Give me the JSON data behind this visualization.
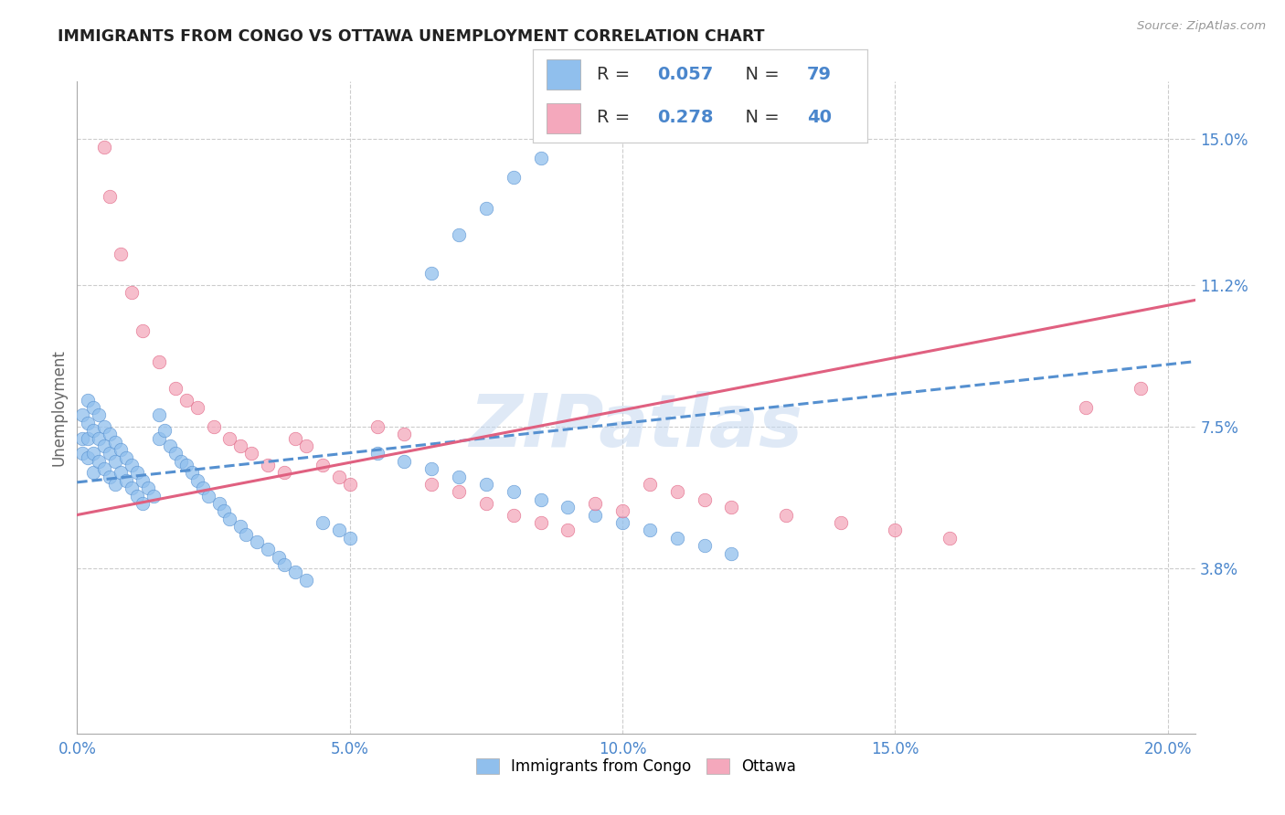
{
  "title": "IMMIGRANTS FROM CONGO VS OTTAWA UNEMPLOYMENT CORRELATION CHART",
  "source": "Source: ZipAtlas.com",
  "xlabel_ticks": [
    "0.0%",
    "5.0%",
    "10.0%",
    "15.0%",
    "20.0%"
  ],
  "xlabel_tick_vals": [
    0.0,
    0.05,
    0.1,
    0.15,
    0.2
  ],
  "ylabel_ticks": [
    "3.8%",
    "7.5%",
    "11.2%",
    "15.0%"
  ],
  "ylabel_tick_vals": [
    0.038,
    0.075,
    0.112,
    0.15
  ],
  "xlim": [
    0.0,
    0.205
  ],
  "ylim": [
    -0.005,
    0.165
  ],
  "watermark": "ZIPatlas",
  "ylabel_label": "Unemployment",
  "legend_label1": "Immigrants from Congo",
  "legend_label2": "Ottawa",
  "R1": 0.057,
  "N1": 79,
  "R2": 0.278,
  "N2": 40,
  "color1": "#90bfed",
  "color2": "#f4a8bc",
  "trendline1_color": "#5590d0",
  "trendline2_color": "#e06080",
  "blue_text_color": "#4a86cc",
  "dark_text_color": "#333333",
  "grid_color": "#cccccc",
  "scatter1_x": [
    0.001,
    0.001,
    0.001,
    0.002,
    0.002,
    0.002,
    0.002,
    0.003,
    0.003,
    0.003,
    0.003,
    0.004,
    0.004,
    0.004,
    0.005,
    0.005,
    0.005,
    0.006,
    0.006,
    0.006,
    0.007,
    0.007,
    0.007,
    0.008,
    0.008,
    0.009,
    0.009,
    0.01,
    0.01,
    0.011,
    0.011,
    0.012,
    0.012,
    0.013,
    0.014,
    0.015,
    0.015,
    0.016,
    0.017,
    0.018,
    0.019,
    0.02,
    0.021,
    0.022,
    0.023,
    0.024,
    0.026,
    0.027,
    0.028,
    0.03,
    0.031,
    0.033,
    0.035,
    0.037,
    0.038,
    0.04,
    0.042,
    0.045,
    0.048,
    0.05,
    0.055,
    0.06,
    0.065,
    0.07,
    0.075,
    0.08,
    0.085,
    0.09,
    0.095,
    0.1,
    0.105,
    0.11,
    0.115,
    0.12,
    0.065,
    0.07,
    0.075,
    0.08,
    0.085
  ],
  "scatter1_y": [
    0.078,
    0.072,
    0.068,
    0.082,
    0.076,
    0.072,
    0.067,
    0.08,
    0.074,
    0.068,
    0.063,
    0.078,
    0.072,
    0.066,
    0.075,
    0.07,
    0.064,
    0.073,
    0.068,
    0.062,
    0.071,
    0.066,
    0.06,
    0.069,
    0.063,
    0.067,
    0.061,
    0.065,
    0.059,
    0.063,
    0.057,
    0.061,
    0.055,
    0.059,
    0.057,
    0.078,
    0.072,
    0.074,
    0.07,
    0.068,
    0.066,
    0.065,
    0.063,
    0.061,
    0.059,
    0.057,
    0.055,
    0.053,
    0.051,
    0.049,
    0.047,
    0.045,
    0.043,
    0.041,
    0.039,
    0.037,
    0.035,
    0.05,
    0.048,
    0.046,
    0.068,
    0.066,
    0.064,
    0.062,
    0.06,
    0.058,
    0.056,
    0.054,
    0.052,
    0.05,
    0.048,
    0.046,
    0.044,
    0.042,
    0.115,
    0.125,
    0.132,
    0.14,
    0.145
  ],
  "scatter2_x": [
    0.005,
    0.006,
    0.008,
    0.01,
    0.012,
    0.015,
    0.018,
    0.02,
    0.022,
    0.025,
    0.028,
    0.03,
    0.032,
    0.035,
    0.038,
    0.04,
    0.042,
    0.045,
    0.048,
    0.05,
    0.055,
    0.06,
    0.065,
    0.07,
    0.075,
    0.08,
    0.085,
    0.09,
    0.095,
    0.1,
    0.105,
    0.11,
    0.115,
    0.12,
    0.13,
    0.14,
    0.15,
    0.16,
    0.185,
    0.195
  ],
  "scatter2_y": [
    0.148,
    0.135,
    0.12,
    0.11,
    0.1,
    0.092,
    0.085,
    0.082,
    0.08,
    0.075,
    0.072,
    0.07,
    0.068,
    0.065,
    0.063,
    0.072,
    0.07,
    0.065,
    0.062,
    0.06,
    0.075,
    0.073,
    0.06,
    0.058,
    0.055,
    0.052,
    0.05,
    0.048,
    0.055,
    0.053,
    0.06,
    0.058,
    0.056,
    0.054,
    0.052,
    0.05,
    0.048,
    0.046,
    0.08,
    0.085
  ],
  "trendline1_x": [
    0.0,
    0.205
  ],
  "trendline1_y": [
    0.0605,
    0.092
  ],
  "trendline2_x": [
    0.0,
    0.205
  ],
  "trendline2_y": [
    0.052,
    0.108
  ]
}
